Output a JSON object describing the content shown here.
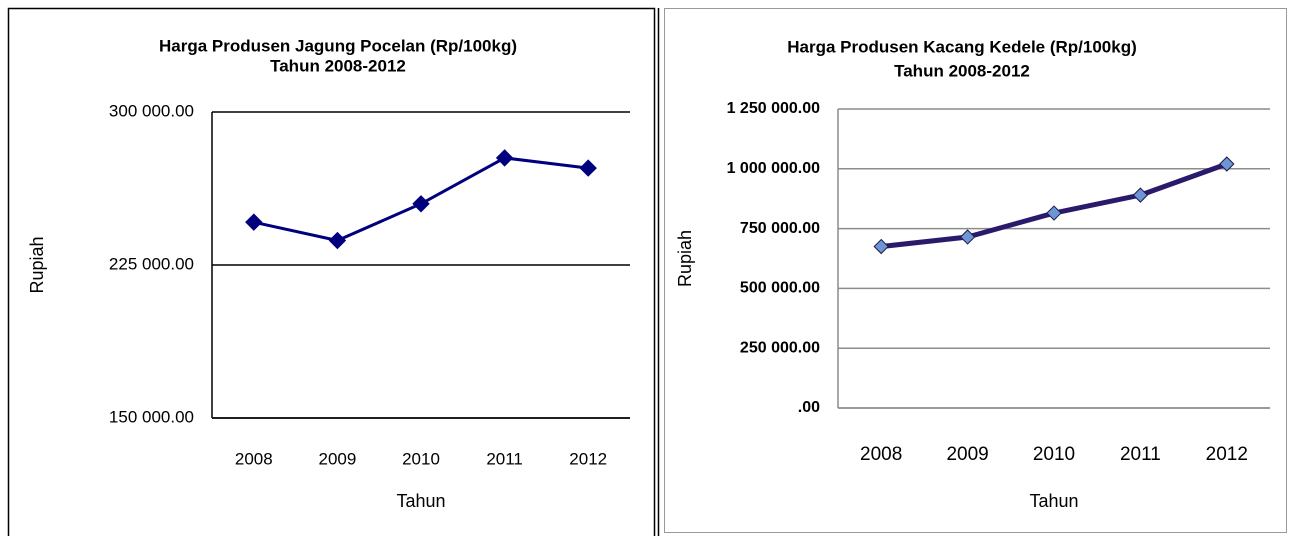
{
  "chart_data": [
    {
      "type": "line",
      "title": "Harga Produsen Jagung Pocelan (Rp/100kg)",
      "subtitle": "Tahun 2008-2012",
      "x_label": "Tahun",
      "y_label": "Rupiah",
      "categories": [
        "2008",
        "2009",
        "2010",
        "2011",
        "2012"
      ],
      "values": [
        246000,
        237000,
        255000,
        277500,
        272500
      ],
      "color": "#00007f",
      "marker_color": "#00007f",
      "grid": true,
      "ylim": [
        150000,
        300000
      ],
      "yticks": [
        {
          "value": 150000,
          "label": "150 000.00"
        },
        {
          "value": 225000,
          "label": "225 000.00"
        },
        {
          "value": 300000,
          "label": "300 000.00"
        }
      ]
    },
    {
      "type": "line",
      "title": "Harga  Produsen Kacang Kedele (Rp/100kg)",
      "subtitle": "Tahun 2008-2012",
      "x_label": "Tahun",
      "y_label": "Rupiah",
      "categories": [
        "2008",
        "2009",
        "2010",
        "2011",
        "2012"
      ],
      "values": [
        675000,
        715000,
        815000,
        890000,
        1020000
      ],
      "color": "#2b1a6b",
      "marker_color": "#6f95d2",
      "grid": true,
      "ylim": [
        0,
        1250000
      ],
      "yticks": [
        {
          "value": 0,
          "label": ".00"
        },
        {
          "value": 250000,
          "label": "250 000.00"
        },
        {
          "value": 500000,
          "label": "500 000.00"
        },
        {
          "value": 750000,
          "label": "750 000.00"
        },
        {
          "value": 1000000,
          "label": "1 000 000.00"
        },
        {
          "value": 1250000,
          "label": "1 250 000.00"
        }
      ]
    }
  ]
}
